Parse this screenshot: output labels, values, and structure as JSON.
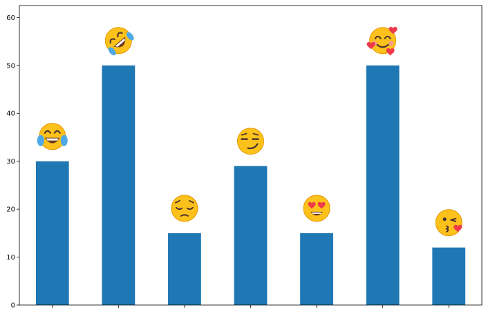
{
  "chart_data": {
    "type": "bar",
    "title": "",
    "xlabel": "",
    "ylabel": "",
    "categories": [
      "",
      "",
      "",
      "",
      "",
      "",
      ""
    ],
    "values": [
      30,
      50,
      15,
      29,
      15,
      50,
      12
    ],
    "bar_color": "#1f77b4",
    "ylim": [
      0,
      62.5
    ],
    "yticks": [
      0,
      10,
      20,
      30,
      40,
      50,
      60
    ],
    "grid": false,
    "legend": "none",
    "annotations": [
      {
        "icon": "face-with-tears-of-joy-icon"
      },
      {
        "icon": "rolling-on-floor-laughing-icon"
      },
      {
        "icon": "pensive-face-icon"
      },
      {
        "icon": "smirking-face-icon"
      },
      {
        "icon": "heart-eyes-face-icon"
      },
      {
        "icon": "smiling-face-with-hearts-icon"
      },
      {
        "icon": "face-blowing-kiss-icon"
      }
    ]
  }
}
